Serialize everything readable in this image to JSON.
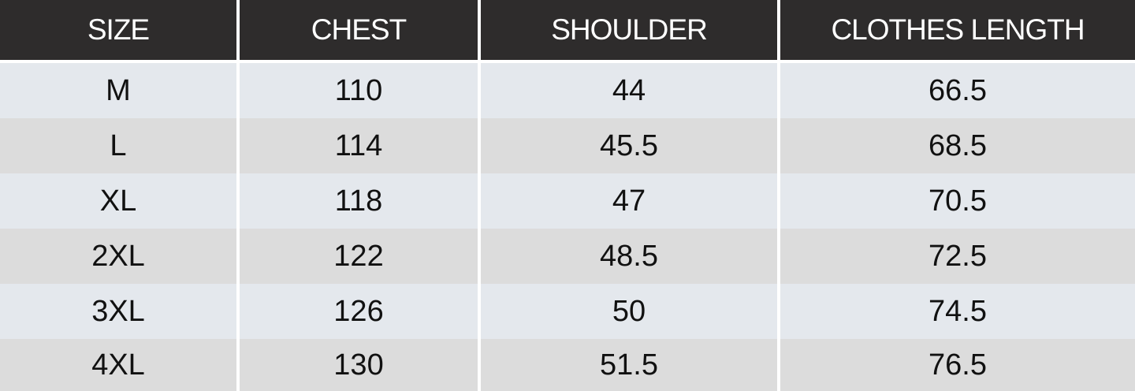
{
  "chart_data": {
    "type": "table",
    "columns": [
      "SIZE",
      "CHEST",
      "SHOULDER",
      "CLOTHES LENGTH"
    ],
    "rows": [
      [
        "M",
        "110",
        "44",
        "66.5"
      ],
      [
        "L",
        "114",
        "45.5",
        "68.5"
      ],
      [
        "XL",
        "118",
        "47",
        "70.5"
      ],
      [
        "2XL",
        "122",
        "48.5",
        "72.5"
      ],
      [
        "3XL",
        "126",
        "50",
        "74.5"
      ],
      [
        "4XL",
        "130",
        "51.5",
        "76.5"
      ]
    ],
    "colors": {
      "header_bg": "#2e2c2c",
      "header_text": "#ffffff",
      "row_odd": "#e4e8ed",
      "row_even": "#dcdcdc"
    }
  }
}
